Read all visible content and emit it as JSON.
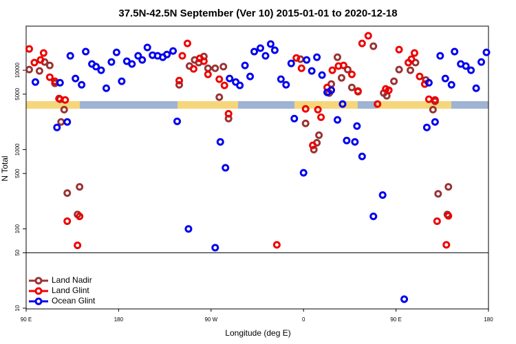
{
  "chart_data": {
    "type": "scatter",
    "title": "37.5N-42.5N September (Ver 10)   2015-01-01 to 2020-12-18",
    "xlabel": "Longitude (deg E)",
    "ylabel": "N Total",
    "log_y": true,
    "xlim": [
      90,
      540
    ],
    "xticks": [
      {
        "value": 90,
        "label": "90 E"
      },
      180,
      {
        "value": 270,
        "label": "90 W"
      },
      {
        "value": 360,
        "label": "0"
      },
      {
        "value": 450,
        "label": "90 E"
      },
      {
        "value": 540,
        "label": "180"
      }
    ],
    "ylim": [
      10,
      36000
    ],
    "yticks": [
      10,
      50,
      100,
      500,
      1000,
      5000,
      10000
    ],
    "hline": 50,
    "legend": "bottom left",
    "series": [
      {
        "name": "Land Nadir",
        "color": "#993333",
        "x": [
          93,
          103,
          108,
          113,
          118,
          123,
          127,
          124,
          130,
          140,
          142,
          239,
          249,
          254,
          258,
          263,
          267,
          274,
          278,
          282,
          287,
          357,
          362,
          370,
          373,
          375,
          385,
          387,
          393,
          397,
          403,
          407,
          413,
          428,
          438,
          441,
          448,
          453,
          464,
          469,
          479,
          486,
          488,
          491,
          500,
          501
        ],
        "values": [
          10200,
          9800,
          12700,
          11500,
          6840,
          4310,
          3190,
          2230,
          283,
          152,
          339,
          6560,
          11300,
          13500,
          12500,
          14900,
          10600,
          10600,
          4580,
          11100,
          2460,
          13800,
          2140,
          1000,
          1220,
          1520,
          5160,
          6700,
          14600,
          8020,
          10200,
          6070,
          5370,
          20100,
          5160,
          4770,
          7260,
          10200,
          10000,
          12500,
          7550,
          3190,
          4060,
          277,
          152,
          339
        ]
      },
      {
        "name": "Land Glint",
        "color": "#ee0000",
        "x": [
          93,
          98,
          104,
          107,
          113,
          118,
          122,
          128,
          130,
          140,
          142,
          239,
          242,
          247,
          253,
          259,
          263,
          267,
          278,
          283,
          287,
          334,
          353,
          358,
          362,
          369,
          374,
          377,
          383,
          388,
          394,
          399,
          407,
          413,
          417,
          423,
          432,
          440,
          443,
          453,
          462,
          465,
          468,
          473,
          478,
          482,
          488,
          490,
          499,
          501
        ],
        "values": [
          18600,
          12500,
          13500,
          16500,
          8180,
          7260,
          4400,
          4230,
          125,
          62,
          144,
          7410,
          15200,
          21800,
          10400,
          14100,
          13000,
          8870,
          7710,
          6440,
          2830,
          63,
          14300,
          10600,
          3260,
          1130,
          3190,
          2560,
          6070,
          10000,
          11300,
          11500,
          8870,
          5480,
          21800,
          27200,
          3750,
          5820,
          5600,
          18200,
          12500,
          13800,
          16500,
          8360,
          6700,
          4310,
          4230,
          125,
          63,
          146
        ]
      },
      {
        "name": "Ocean Glint",
        "color": "#0000ee",
        "x": [
          99,
          120,
          123,
          130,
          133,
          138,
          144,
          148,
          154,
          158,
          163,
          168,
          173,
          178,
          183,
          188,
          193,
          199,
          203,
          208,
          213,
          218,
          223,
          227,
          233,
          237,
          248,
          274,
          279,
          284,
          288,
          294,
          298,
          303,
          308,
          312,
          318,
          323,
          328,
          332,
          338,
          343,
          348,
          351,
          360,
          363,
          368,
          373,
          378,
          383,
          387,
          393,
          398,
          402,
          410,
          412,
          417,
          428,
          437,
          458,
          480,
          482,
          488,
          493,
          498,
          504,
          507,
          513,
          518,
          523,
          528,
          533,
          538
        ],
        "values": [
          7110,
          1900,
          6970,
          2230,
          15200,
          7870,
          6560,
          17200,
          12000,
          11100,
          10000,
          5940,
          12700,
          16800,
          7260,
          13000,
          12000,
          15200,
          13500,
          19400,
          15500,
          15200,
          14600,
          15800,
          17500,
          2270,
          100,
          58,
          1250,
          590,
          7870,
          7110,
          6440,
          11500,
          8360,
          17200,
          19000,
          15200,
          21400,
          17900,
          7710,
          6560,
          12200,
          2460,
          510,
          13500,
          9800,
          14600,
          8690,
          5270,
          5600,
          2370,
          3750,
          1300,
          1250,
          1980,
          820,
          144,
          267,
          13,
          1900,
          6970,
          2230,
          15200,
          7870,
          6560,
          17200,
          12000,
          11300,
          10000,
          5940,
          12700,
          16800
        ]
      }
    ]
  }
}
